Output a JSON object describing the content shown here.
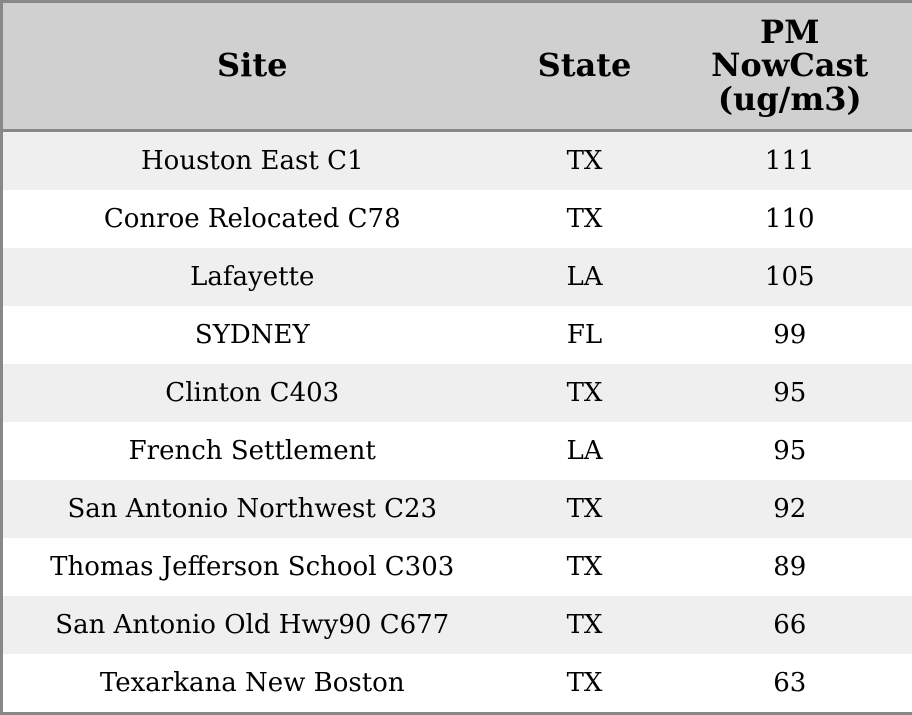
{
  "table": {
    "header": [
      "Site",
      "State",
      "PM NowCast (ug/m3)"
    ],
    "rows": [
      [
        "Houston East C1",
        "TX",
        111
      ],
      [
        "Conroe Relocated C78",
        "TX",
        110
      ],
      [
        "Lafayette",
        "LA",
        105
      ],
      [
        "SYDNEY",
        "FL",
        99
      ],
      [
        "Clinton C403",
        "TX",
        95
      ],
      [
        "French Settlement",
        "LA",
        95
      ],
      [
        "San Antonio Northwest C23",
        "TX",
        92
      ],
      [
        "Thomas Jefferson School C303",
        "TX",
        89
      ],
      [
        "San Antonio Old Hwy90 C677",
        "TX",
        66
      ],
      [
        "Texarkana New Boston",
        "TX",
        63
      ]
    ]
  }
}
